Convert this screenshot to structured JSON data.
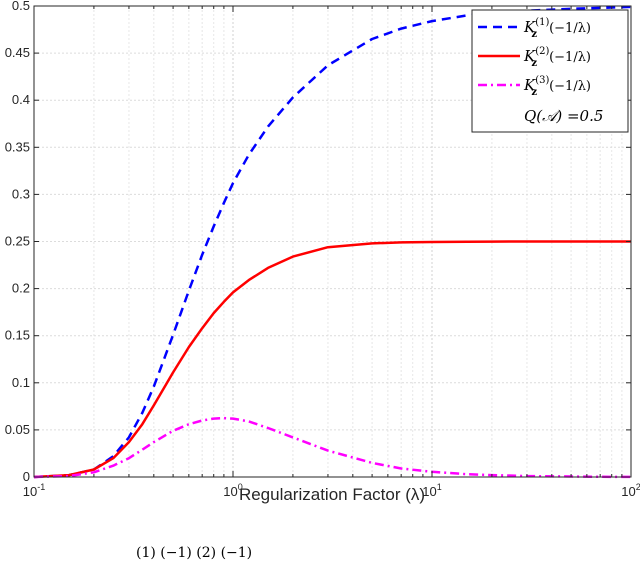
{
  "chart_data": {
    "type": "line",
    "title": "",
    "xlabel": "Regularization Factor (λ)",
    "ylabel": "",
    "xscale": "log",
    "xlim": [
      0.1,
      100
    ],
    "ylim": [
      0,
      0.5
    ],
    "grid": true,
    "legend_position": "top-right",
    "x_ticks": [
      {
        "base": "10",
        "exp": "-1"
      },
      {
        "base": "10",
        "exp": "0"
      },
      {
        "base": "10",
        "exp": "1"
      },
      {
        "base": "10",
        "exp": "2"
      }
    ],
    "y_ticks": [
      "0",
      "0.05",
      "0.1",
      "0.15",
      "0.2",
      "0.25",
      "0.3",
      "0.35",
      "0.4",
      "0.45",
      "0.5"
    ],
    "y_tick_values": [
      0,
      0.05,
      0.1,
      0.15,
      0.2,
      0.25,
      0.3,
      0.35,
      0.4,
      0.45,
      0.5
    ],
    "x": [
      0.1,
      0.15,
      0.2,
      0.25,
      0.3,
      0.35,
      0.4,
      0.5,
      0.6,
      0.7,
      0.8,
      0.9,
      1.0,
      1.2,
      1.5,
      2,
      3,
      5,
      7,
      10,
      15,
      20,
      30,
      50,
      70,
      100
    ],
    "series": [
      {
        "name": "K_z^(1)(−1/λ)",
        "color": "#0000ff",
        "style": "dashed",
        "values": [
          0.0,
          0.002,
          0.008,
          0.022,
          0.042,
          0.068,
          0.096,
          0.151,
          0.198,
          0.236,
          0.266,
          0.291,
          0.312,
          0.342,
          0.372,
          0.403,
          0.437,
          0.465,
          0.476,
          0.484,
          0.49,
          0.492,
          0.495,
          0.497,
          0.498,
          0.499
        ]
      },
      {
        "name": "K_z^(2)(−1/λ)",
        "color": "#ff0000",
        "style": "solid",
        "values": [
          0.0,
          0.002,
          0.008,
          0.02,
          0.037,
          0.056,
          0.076,
          0.111,
          0.138,
          0.158,
          0.174,
          0.186,
          0.196,
          0.209,
          0.222,
          0.234,
          0.244,
          0.248,
          0.249,
          0.2495,
          0.2498,
          0.2499,
          0.25,
          0.25,
          0.25,
          0.25
        ]
      },
      {
        "name": "K_z^(3)(−1/λ)",
        "color": "#ff00ff",
        "style": "dashdot",
        "values": [
          0.0,
          0.001,
          0.005,
          0.012,
          0.02,
          0.029,
          0.037,
          0.049,
          0.056,
          0.06,
          0.062,
          0.0625,
          0.062,
          0.059,
          0.052,
          0.042,
          0.028,
          0.015,
          0.009,
          0.0055,
          0.003,
          0.002,
          0.001,
          0.0005,
          0.0002,
          0.0001
        ]
      }
    ],
    "legend": [
      {
        "base": "K",
        "sub": "z",
        "sup": "(1)",
        "arg": "(−1/λ)"
      },
      {
        "base": "K",
        "sub": "z",
        "sup": "(2)",
        "arg": "(−1/λ)"
      },
      {
        "base": "K",
        "sub": "z",
        "sup": "(3)",
        "arg": "(−1/λ)"
      }
    ],
    "annotation": "Q(𝒜) =0.5"
  },
  "caption_fragment": "(1) (−1)          (2) (−1)"
}
